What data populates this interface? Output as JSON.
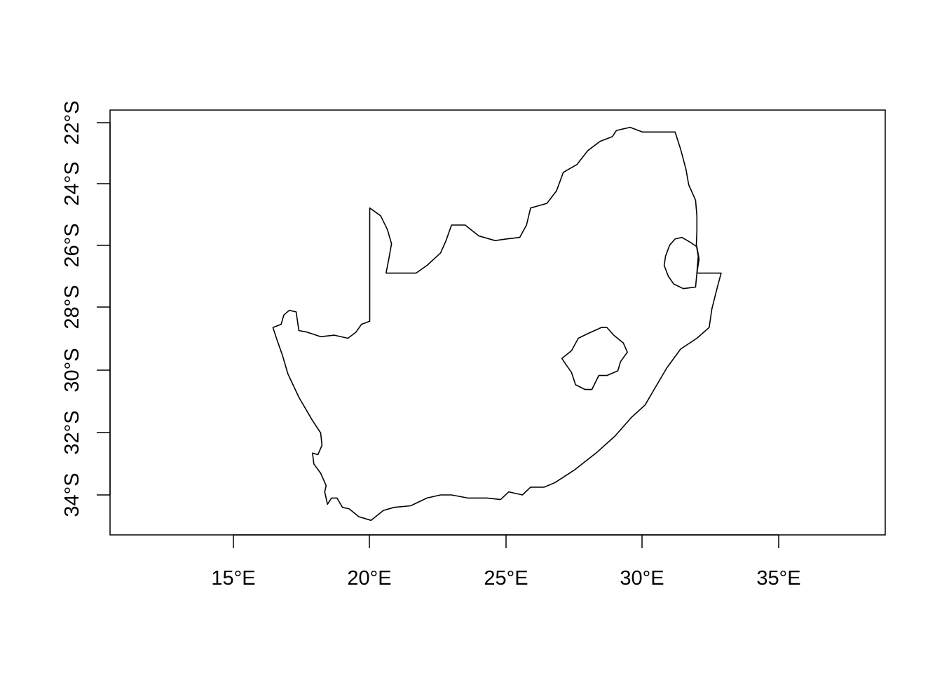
{
  "map": {
    "x_ticks": [
      {
        "lon": 15,
        "label": "15°E"
      },
      {
        "lon": 20,
        "label": "20°E"
      },
      {
        "lon": 25,
        "label": "25°E"
      },
      {
        "lon": 30,
        "label": "30°E"
      },
      {
        "lon": 35,
        "label": "35°E"
      }
    ],
    "y_ticks": [
      {
        "lat": -22,
        "label": "22°S"
      },
      {
        "lat": -24,
        "label": "24°S"
      },
      {
        "lat": -26,
        "label": "26°S"
      },
      {
        "lat": -28,
        "label": "28°S"
      },
      {
        "lat": -30,
        "label": "30°S"
      },
      {
        "lat": -32,
        "label": "32°S"
      },
      {
        "lat": -34,
        "label": "34°S"
      }
    ],
    "xlim": [
      10.5,
      38.9
    ],
    "ylim": [
      -35.2,
      -21.6
    ],
    "outlines": [
      {
        "name": "south-africa-outline",
        "points": [
          [
            20.0,
            -24.75
          ],
          [
            20.4,
            -25.0
          ],
          [
            20.65,
            -25.45
          ],
          [
            20.8,
            -25.9
          ],
          [
            20.7,
            -26.4
          ],
          [
            20.6,
            -26.85
          ],
          [
            21.1,
            -26.85
          ],
          [
            21.7,
            -26.85
          ],
          [
            22.1,
            -26.6
          ],
          [
            22.6,
            -26.2
          ],
          [
            22.8,
            -25.8
          ],
          [
            23.0,
            -25.3
          ],
          [
            23.5,
            -25.3
          ],
          [
            24.0,
            -25.65
          ],
          [
            24.6,
            -25.8
          ],
          [
            25.0,
            -25.75
          ],
          [
            25.5,
            -25.7
          ],
          [
            25.75,
            -25.3
          ],
          [
            25.9,
            -24.75
          ],
          [
            26.5,
            -24.6
          ],
          [
            26.85,
            -24.2
          ],
          [
            27.1,
            -23.6
          ],
          [
            27.6,
            -23.35
          ],
          [
            28.0,
            -22.9
          ],
          [
            28.45,
            -22.6
          ],
          [
            28.9,
            -22.45
          ],
          [
            29.05,
            -22.25
          ],
          [
            29.55,
            -22.15
          ],
          [
            30.0,
            -22.3
          ],
          [
            30.6,
            -22.3
          ],
          [
            31.2,
            -22.3
          ],
          [
            31.4,
            -22.85
          ],
          [
            31.6,
            -23.5
          ],
          [
            31.7,
            -24.0
          ],
          [
            31.95,
            -24.5
          ],
          [
            32.0,
            -25.0
          ],
          [
            32.0,
            -25.5
          ],
          [
            31.98,
            -25.95
          ],
          [
            32.05,
            -26.3
          ],
          [
            32.0,
            -26.85
          ],
          [
            32.89,
            -26.85
          ],
          [
            32.75,
            -27.3
          ],
          [
            32.55,
            -28.0
          ],
          [
            32.45,
            -28.6
          ],
          [
            32.0,
            -28.95
          ],
          [
            31.4,
            -29.3
          ],
          [
            30.9,
            -29.9
          ],
          [
            30.5,
            -30.5
          ],
          [
            30.1,
            -31.1
          ],
          [
            29.6,
            -31.5
          ],
          [
            29.0,
            -32.1
          ],
          [
            28.3,
            -32.65
          ],
          [
            27.5,
            -33.2
          ],
          [
            26.8,
            -33.6
          ],
          [
            26.4,
            -33.75
          ],
          [
            25.9,
            -33.75
          ],
          [
            25.6,
            -34.0
          ],
          [
            25.1,
            -33.9
          ],
          [
            24.8,
            -34.15
          ],
          [
            24.3,
            -34.1
          ],
          [
            23.6,
            -34.1
          ],
          [
            23.0,
            -34.0
          ],
          [
            22.6,
            -34.0
          ],
          [
            22.1,
            -34.1
          ],
          [
            21.5,
            -34.35
          ],
          [
            20.9,
            -34.4
          ],
          [
            20.5,
            -34.5
          ],
          [
            20.05,
            -34.82
          ],
          [
            19.6,
            -34.7
          ],
          [
            19.25,
            -34.45
          ],
          [
            19.0,
            -34.4
          ],
          [
            18.8,
            -34.1
          ],
          [
            18.6,
            -34.1
          ],
          [
            18.45,
            -34.3
          ],
          [
            18.35,
            -33.9
          ],
          [
            18.4,
            -33.7
          ],
          [
            18.2,
            -33.3
          ],
          [
            17.95,
            -33.0
          ],
          [
            17.9,
            -32.65
          ],
          [
            18.1,
            -32.7
          ],
          [
            18.25,
            -32.4
          ],
          [
            18.2,
            -32.0
          ],
          [
            17.9,
            -31.6
          ],
          [
            17.4,
            -30.85
          ],
          [
            17.0,
            -30.1
          ],
          [
            16.8,
            -29.5
          ],
          [
            16.6,
            -29.0
          ],
          [
            16.45,
            -28.6
          ],
          [
            16.75,
            -28.5
          ],
          [
            16.85,
            -28.2
          ],
          [
            17.05,
            -28.05
          ],
          [
            17.3,
            -28.1
          ],
          [
            17.4,
            -28.7
          ],
          [
            17.7,
            -28.75
          ],
          [
            18.2,
            -28.9
          ],
          [
            18.7,
            -28.85
          ],
          [
            19.2,
            -28.95
          ],
          [
            19.5,
            -28.75
          ],
          [
            19.7,
            -28.5
          ],
          [
            20.0,
            -28.4
          ],
          [
            20.0,
            -26.5
          ],
          [
            20.0,
            -24.75
          ]
        ]
      },
      {
        "name": "eswatini-outline",
        "points": [
          [
            31.2,
            -25.75
          ],
          [
            31.45,
            -25.7
          ],
          [
            31.75,
            -25.85
          ],
          [
            32.0,
            -26.0
          ],
          [
            32.08,
            -26.4
          ],
          [
            32.0,
            -26.85
          ],
          [
            31.95,
            -27.3
          ],
          [
            31.5,
            -27.35
          ],
          [
            31.15,
            -27.2
          ],
          [
            30.95,
            -26.95
          ],
          [
            30.8,
            -26.6
          ],
          [
            30.85,
            -26.3
          ],
          [
            31.0,
            -25.95
          ],
          [
            31.2,
            -25.75
          ]
        ]
      },
      {
        "name": "lesotho-outline",
        "points": [
          [
            28.5,
            -28.6
          ],
          [
            28.7,
            -28.6
          ],
          [
            28.95,
            -28.85
          ],
          [
            29.3,
            -29.1
          ],
          [
            29.45,
            -29.4
          ],
          [
            29.2,
            -29.7
          ],
          [
            29.1,
            -30.0
          ],
          [
            28.7,
            -30.15
          ],
          [
            28.4,
            -30.15
          ],
          [
            28.15,
            -30.6
          ],
          [
            27.9,
            -30.6
          ],
          [
            27.55,
            -30.45
          ],
          [
            27.4,
            -30.05
          ],
          [
            27.2,
            -29.8
          ],
          [
            27.05,
            -29.6
          ],
          [
            27.4,
            -29.35
          ],
          [
            27.65,
            -28.95
          ],
          [
            28.0,
            -28.8
          ],
          [
            28.25,
            -28.7
          ],
          [
            28.5,
            -28.6
          ]
        ]
      }
    ]
  }
}
